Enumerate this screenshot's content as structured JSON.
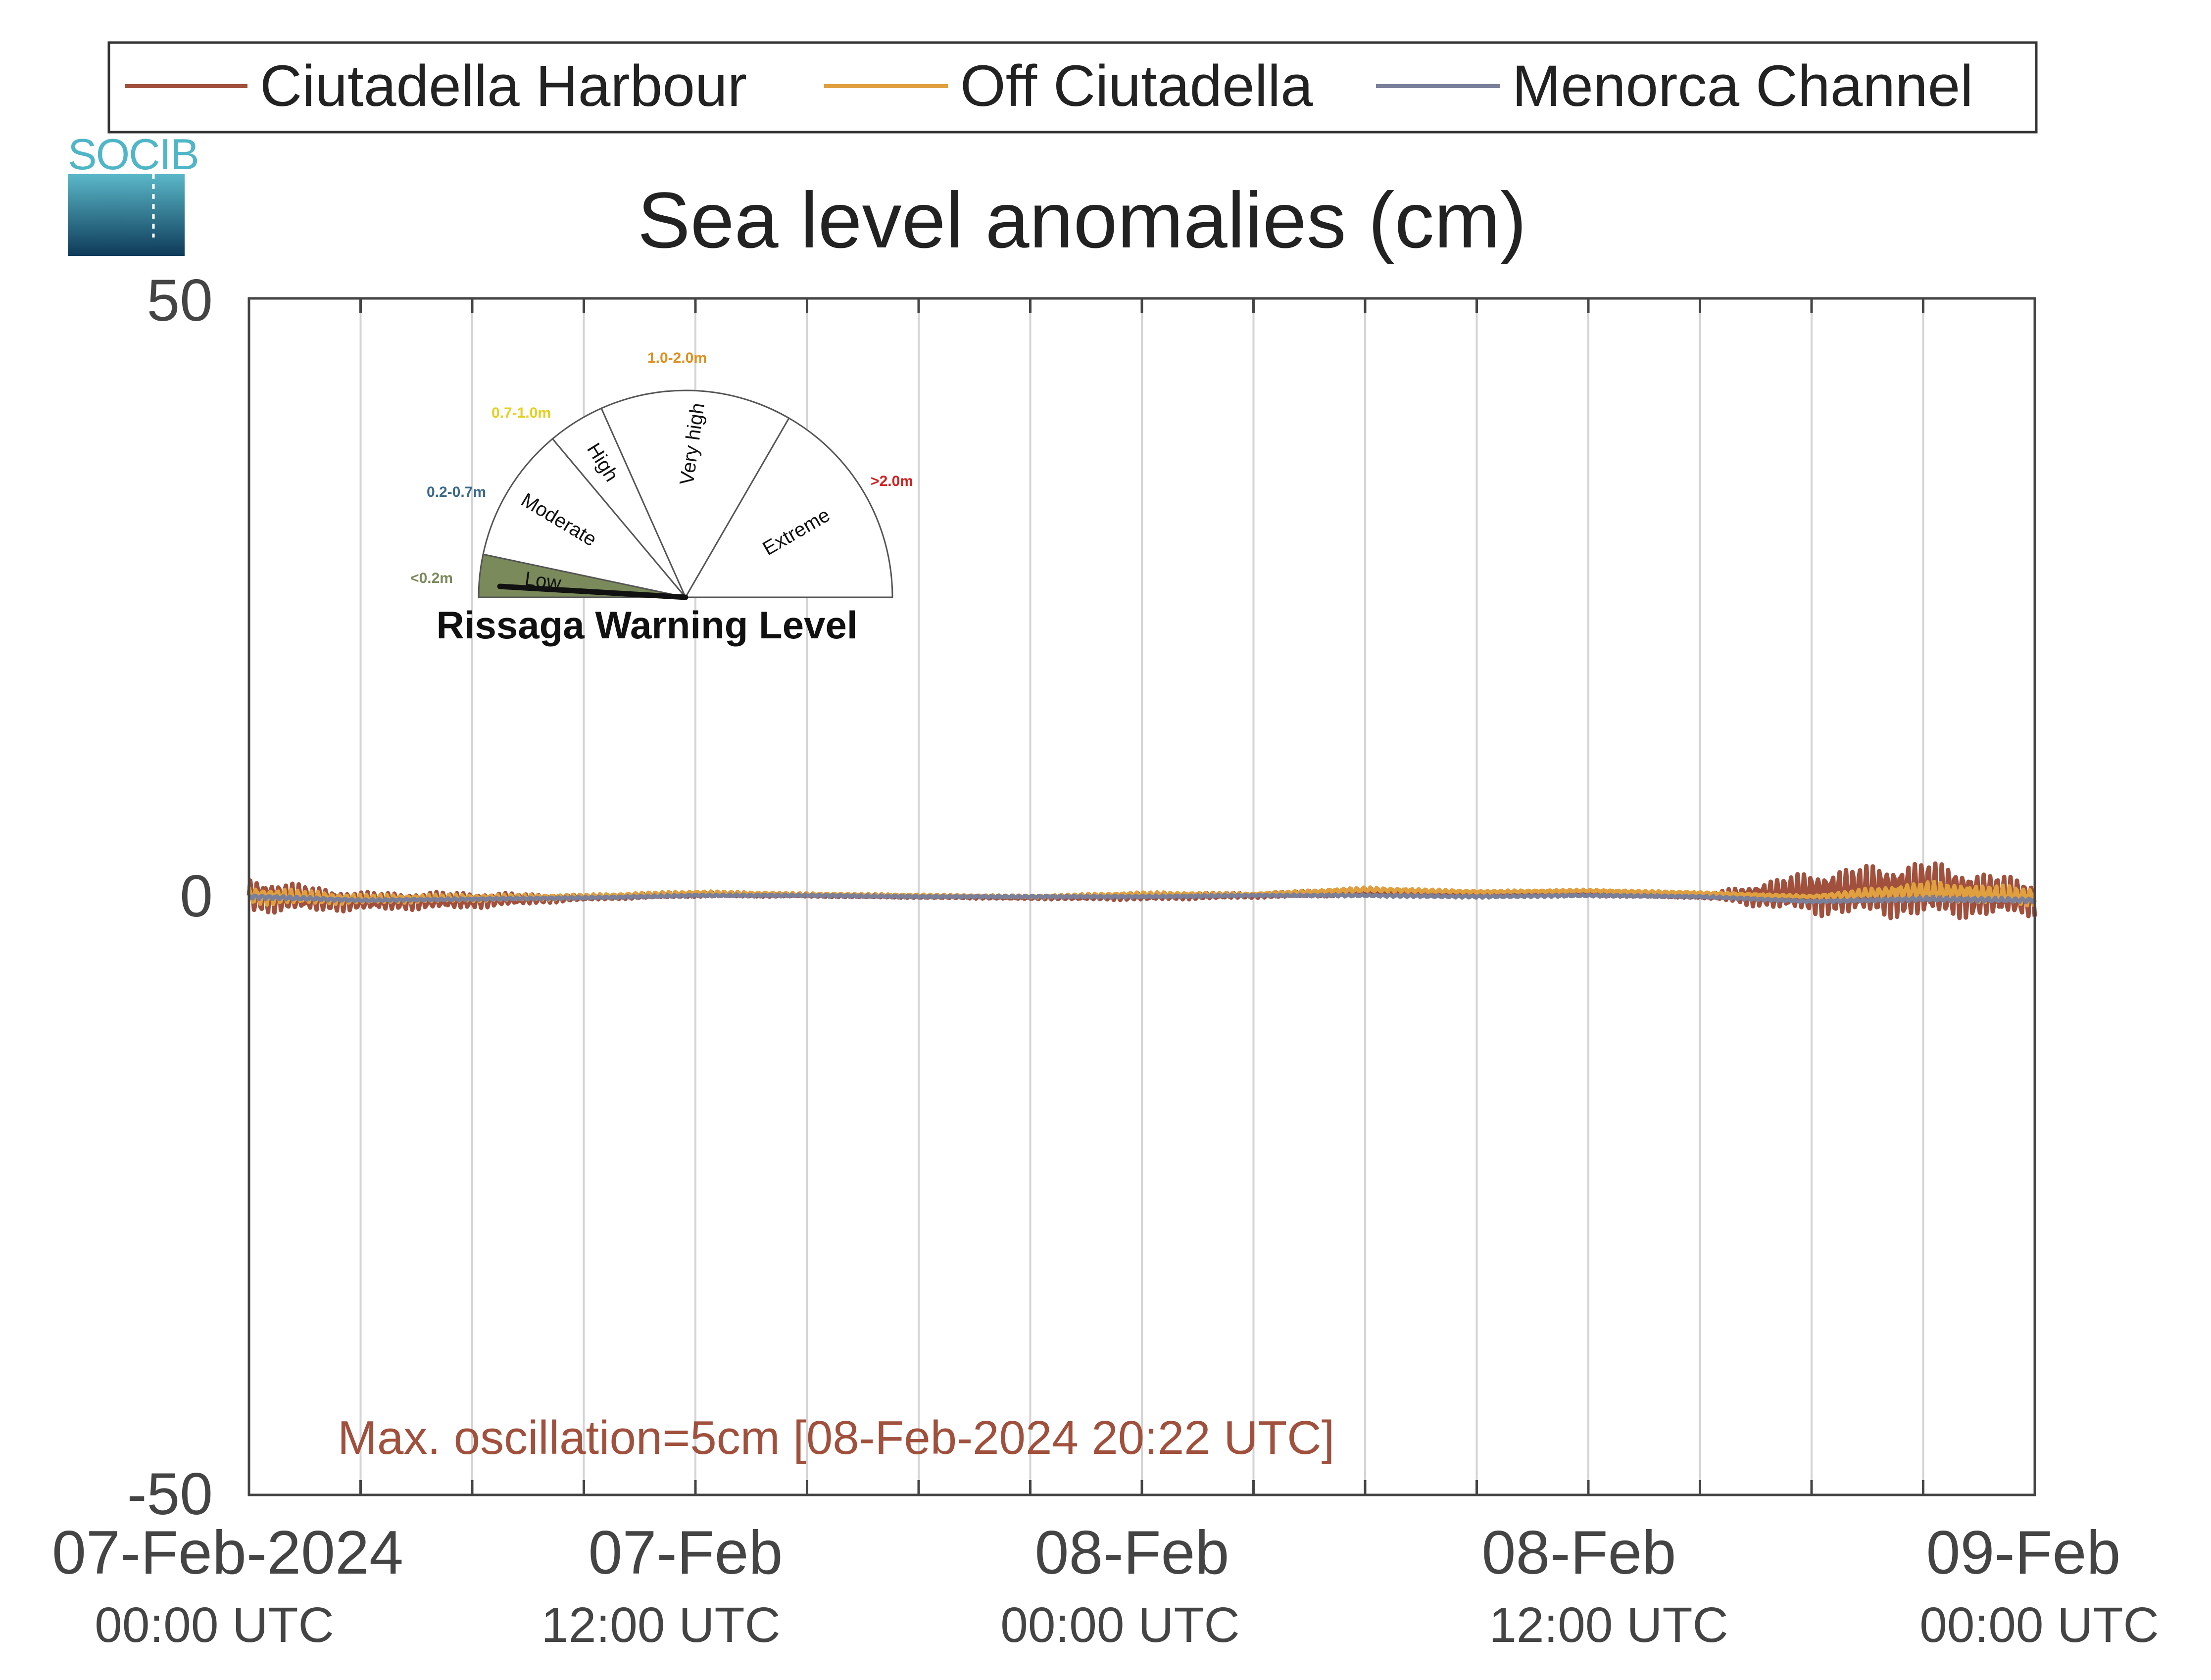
{
  "logo": {
    "text": "SOCIB"
  },
  "legend": {
    "items": [
      {
        "label": "Ciutadella Harbour",
        "color": "#a0503c"
      },
      {
        "label": "Off Ciutadella",
        "color": "#e0a040"
      },
      {
        "label": "Menorca Channel",
        "color": "#7a7f9a"
      }
    ]
  },
  "chart_data": {
    "type": "line",
    "title": "Sea level anomalies (cm)",
    "xlabel": "",
    "ylabel": "",
    "ylim": [
      -50,
      50
    ],
    "yticks": [
      "50",
      "0",
      "-50"
    ],
    "xlim_hours": [
      0,
      48
    ],
    "grid": "vertical, every 3 hours",
    "xticks": [
      {
        "date": "07-Feb-2024",
        "time": "00:00 UTC"
      },
      {
        "date": "07-Feb",
        "time": "12:00 UTC"
      },
      {
        "date": "08-Feb",
        "time": "00:00 UTC"
      },
      {
        "date": "08-Feb",
        "time": "12:00 UTC"
      },
      {
        "date": "09-Feb",
        "time": "00:00 UTC"
      }
    ],
    "series": [
      {
        "name": "Ciutadella Harbour",
        "color": "#a0503c",
        "x_hours": [
          0,
          3,
          6,
          9,
          12,
          15,
          18,
          21,
          24,
          27,
          30,
          31.5,
          33,
          36,
          39,
          42,
          45,
          48
        ],
        "y": [
          0.1,
          -0.4,
          -0.3,
          -0.1,
          0.2,
          0.1,
          0.0,
          -0.1,
          0.0,
          0.1,
          0.4,
          0.3,
          0.3,
          0.2,
          0.0,
          0.3,
          0.6,
          -0.2
        ],
        "osc_amp": [
          1.5,
          0.8,
          0.7,
          0.2,
          0.2,
          0.1,
          0.1,
          0.1,
          0.3,
          0.2,
          0.3,
          0.2,
          0.1,
          0.1,
          0.1,
          1.9,
          2.5,
          1.5
        ]
      },
      {
        "name": "Off Ciutadella",
        "color": "#e0a040",
        "x_hours": [
          0,
          3,
          6,
          9,
          12,
          15,
          18,
          21,
          24,
          27,
          30,
          33,
          36,
          39,
          42,
          45,
          48
        ],
        "y": [
          0.1,
          -0.2,
          -0.1,
          0.0,
          0.3,
          0.2,
          0.1,
          0.0,
          0.2,
          0.2,
          0.6,
          0.4,
          0.5,
          0.3,
          0.0,
          0.5,
          0.0
        ],
        "osc_amp": [
          0.8,
          0.4,
          0.3,
          0.2,
          0.2,
          0.1,
          0.1,
          0.1,
          0.2,
          0.1,
          0.2,
          0.1,
          0.1,
          0.1,
          0.1,
          0.8,
          0.8
        ]
      },
      {
        "name": "Menorca Channel",
        "color": "#7a7f9a",
        "x_hours": [
          0,
          3,
          6,
          9,
          12,
          15,
          18,
          21,
          24,
          27,
          30,
          33,
          36,
          39,
          42,
          45,
          48
        ],
        "y": [
          0.0,
          -0.3,
          -0.2,
          -0.1,
          0.1,
          0.1,
          0.0,
          0.0,
          0.0,
          0.1,
          0.1,
          0.0,
          0.1,
          0.0,
          -0.4,
          -0.2,
          -0.3
        ],
        "osc_amp": [
          0.2,
          0.1,
          0.1,
          0.1,
          0.1,
          0.1,
          0.1,
          0.1,
          0.1,
          0.1,
          0.1,
          0.1,
          0.1,
          0.1,
          0.1,
          0.2,
          0.2
        ]
      }
    ],
    "annotation": "Max. oscillation=5cm [08-Feb-2024 20:22 UTC]",
    "annotation_color": "#a0503c"
  },
  "warning_gauge": {
    "title": "Rissaga Warning Level",
    "current_level": "Low",
    "levels": [
      {
        "name": "Low",
        "range": "<0.2m",
        "color": "#7a8a5a",
        "fill": "#7a8a5a"
      },
      {
        "name": "Moderate",
        "range": "0.2-0.7m",
        "color": "#3a6a8a",
        "fill": "#ffffff"
      },
      {
        "name": "High",
        "range": "0.7-1.0m",
        "color": "#e6d020",
        "fill": "#ffffff"
      },
      {
        "name": "Very high",
        "range": "1.0-2.0m",
        "color": "#e09020",
        "fill": "#ffffff"
      },
      {
        "name": "Extreme",
        "range": ">2.0m",
        "color": "#d02020",
        "fill": "#ffffff"
      }
    ]
  }
}
